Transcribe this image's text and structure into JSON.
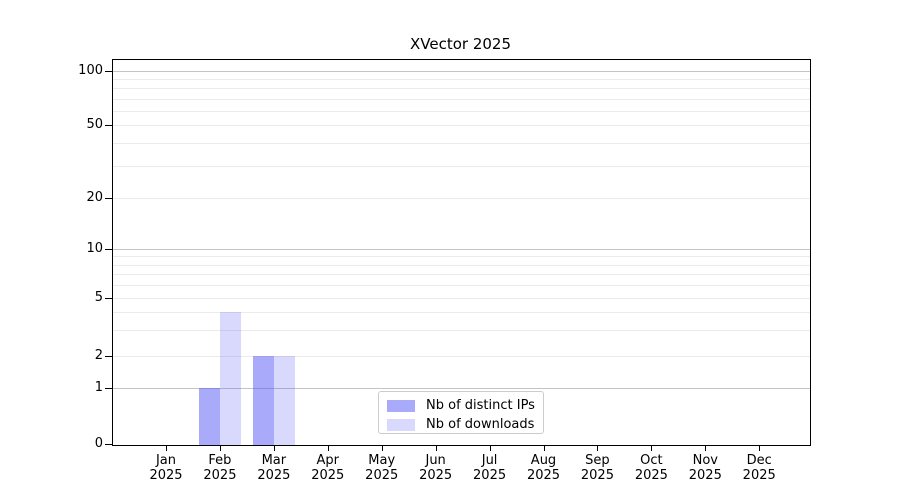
{
  "chart_data": {
    "type": "bar",
    "title": "XVector 2025",
    "x_months": [
      "Jan",
      "Feb",
      "Mar",
      "Apr",
      "May",
      "Jun",
      "Jul",
      "Aug",
      "Sep",
      "Oct",
      "Nov",
      "Dec"
    ],
    "x_year": "2025",
    "series": [
      {
        "name": "Nb of distinct IPs",
        "color": "#5052f4",
        "alpha": 0.49,
        "perceived_color": "#aaabf8",
        "values": [
          0,
          1,
          2,
          0,
          0,
          0,
          0,
          0,
          0,
          0,
          0,
          0
        ]
      },
      {
        "name": "Nb of downloads",
        "color": "#5052f4",
        "alpha": 0.22,
        "perceived_color": "#d9dbfa",
        "values": [
          0,
          4,
          2,
          0,
          0,
          0,
          0,
          0,
          0,
          0,
          0,
          0
        ]
      }
    ],
    "y_ticks": [
      0,
      1,
      2,
      5,
      10,
      20,
      50,
      100
    ],
    "y_minor_gridlines": [
      2,
      3,
      4,
      5,
      6,
      7,
      8,
      9,
      20,
      30,
      40,
      50,
      60,
      70,
      80,
      90
    ],
    "y_major_gridlines": [
      1,
      10,
      100
    ],
    "ylim": [
      0,
      100
    ],
    "y_scale": "log (linear segment between 0 and 1)",
    "grid": "horizontal major + minor",
    "legend_position": "lower center inside plot"
  }
}
